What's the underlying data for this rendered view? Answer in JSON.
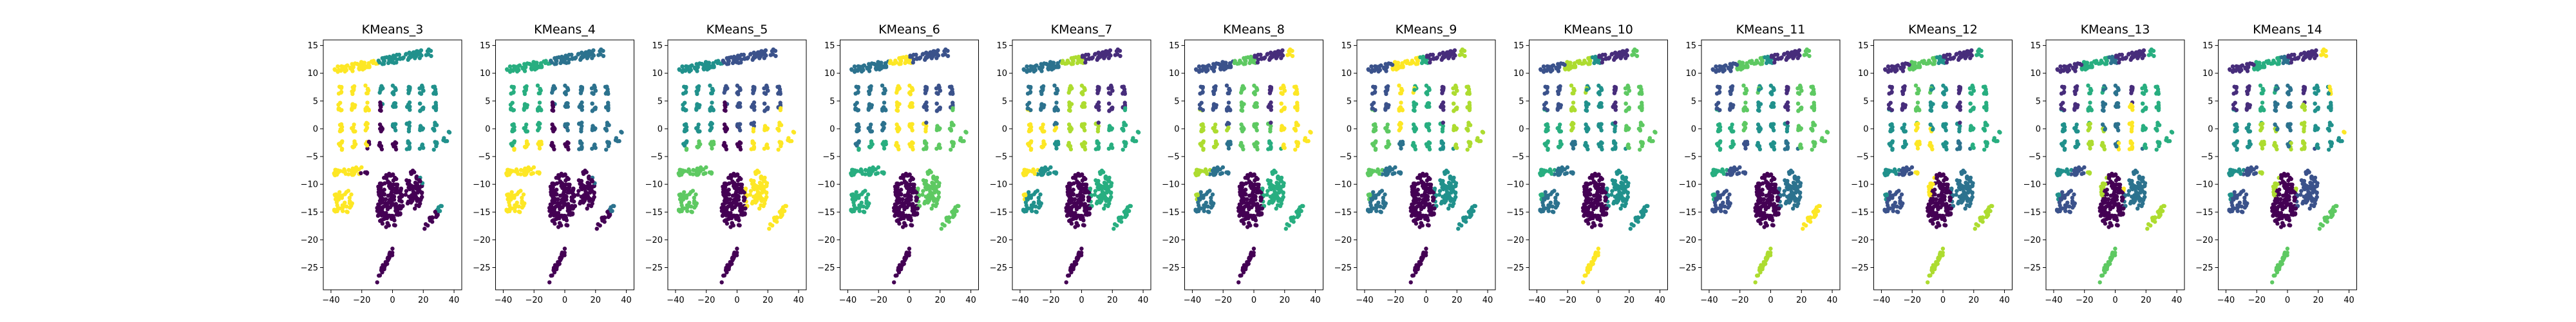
{
  "figure": {
    "panel_titles": [
      "KMeans_3",
      "KMeans_4",
      "KMeans_5",
      "KMeans_6",
      "KMeans_7",
      "KMeans_8",
      "KMeans_9",
      "KMeans_10",
      "KMeans_11",
      "KMeans_12",
      "KMeans_13",
      "KMeans_14"
    ]
  },
  "colors": {
    "viridis": [
      "#440154",
      "#472d7b",
      "#3b528b",
      "#2c728e",
      "#21918c",
      "#28ae80",
      "#5ec962",
      "#addc30",
      "#fde725"
    ]
  },
  "chart_data": {
    "type": "scatter",
    "grid": false,
    "legend": false,
    "xlim": [
      -45,
      45
    ],
    "ylim": [
      -29,
      16
    ],
    "xticks": [
      -40,
      -20,
      0,
      20,
      40
    ],
    "yticks": [
      -25,
      -20,
      -15,
      -10,
      -5,
      0,
      5,
      10,
      15
    ],
    "xtick_labels": [
      "−40",
      "−20",
      "0",
      "20",
      "40"
    ],
    "ytick_labels": [
      "−25",
      "−20",
      "−15",
      "−10",
      "−5",
      "0",
      "5",
      "10",
      "15"
    ],
    "panels": [
      {
        "title": "KMeans_3",
        "k": 3
      },
      {
        "title": "KMeans_4",
        "k": 4
      },
      {
        "title": "KMeans_5",
        "k": 5
      },
      {
        "title": "KMeans_6",
        "k": 6
      },
      {
        "title": "KMeans_7",
        "k": 7
      },
      {
        "title": "KMeans_8",
        "k": 8
      },
      {
        "title": "KMeans_9",
        "k": 9
      },
      {
        "title": "KMeans_10",
        "k": 10
      },
      {
        "title": "KMeans_11",
        "k": 11
      },
      {
        "title": "KMeans_12",
        "k": 12
      },
      {
        "title": "KMeans_13",
        "k": 13
      },
      {
        "title": "KMeans_14",
        "k": 14
      }
    ],
    "point_groups": [
      {
        "name": "top-band-left",
        "x": [
          -38,
          -10
        ],
        "y": [
          10.5,
          12.5
        ]
      },
      {
        "name": "top-band-right",
        "x": [
          -10,
          25
        ],
        "y": [
          12,
          14
        ]
      },
      {
        "name": "row-7",
        "x": [
          -35,
          28
        ],
        "y": [
          6,
          8
        ],
        "columns": 8
      },
      {
        "name": "row-4",
        "x": [
          -35,
          28
        ],
        "y": [
          3,
          5
        ],
        "columns": 8
      },
      {
        "name": "row-0",
        "x": [
          -35,
          28
        ],
        "y": [
          -1,
          1
        ],
        "columns": 8
      },
      {
        "name": "row-m3",
        "x": [
          -35,
          28
        ],
        "y": [
          -4,
          -2
        ],
        "columns": 8
      },
      {
        "name": "left-band-m8",
        "x": [
          -38,
          -12
        ],
        "y": [
          -8,
          -7
        ]
      },
      {
        "name": "left-cluster-m13",
        "x": [
          -38,
          -25
        ],
        "y": [
          -15,
          -11
        ]
      },
      {
        "name": "main-blob",
        "x": [
          -12,
          8
        ],
        "y": [
          -18,
          -8
        ]
      },
      {
        "name": "right-blob",
        "x": [
          8,
          25
        ],
        "y": [
          -14,
          -8
        ]
      },
      {
        "name": "right-diagonal",
        "x": [
          20,
          32
        ],
        "y": [
          -18,
          -14
        ]
      },
      {
        "name": "far-right-pts",
        "x": [
          33,
          38
        ],
        "y": [
          -3,
          0
        ]
      },
      {
        "name": "bottom-diagonal",
        "x": [
          -10,
          0
        ],
        "y": [
          -27,
          -22
        ]
      }
    ]
  }
}
